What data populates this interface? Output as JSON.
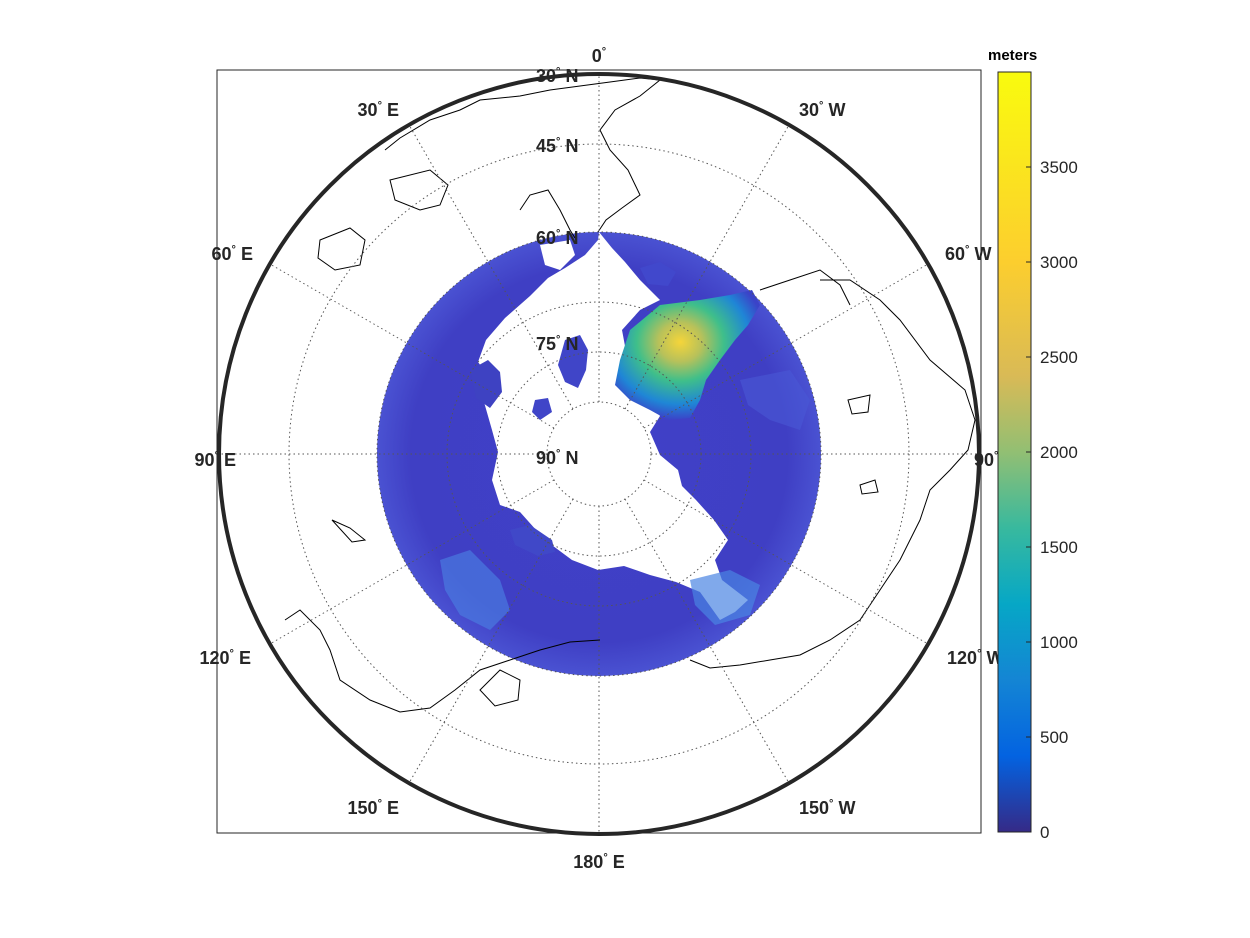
{
  "map": {
    "projection": "north-polar stereographic",
    "latitude_labels": [
      "30",
      "45",
      "60",
      "75",
      "90"
    ],
    "lat_suffix": "N",
    "meridian_labels": [
      {
        "num": "0",
        "dir": ""
      },
      {
        "num": "30",
        "dir": "W"
      },
      {
        "num": "60",
        "dir": "W"
      },
      {
        "num": "90",
        "dir": "W"
      },
      {
        "num": "120",
        "dir": "W"
      },
      {
        "num": "150",
        "dir": "W"
      },
      {
        "num": "180",
        "dir": "E"
      },
      {
        "num": "150",
        "dir": "E"
      },
      {
        "num": "120",
        "dir": "E"
      },
      {
        "num": "90",
        "dir": "E"
      },
      {
        "num": "60",
        "dir": "E"
      },
      {
        "num": "30",
        "dir": "E"
      }
    ],
    "degree_symbol": "°",
    "grid": true,
    "data_fill": "elevation raster, 60–90 N",
    "colormap": "parula"
  },
  "colorbar": {
    "title": "meters",
    "ticks": [
      "0",
      "500",
      "1000",
      "1500",
      "2000",
      "2500",
      "3000",
      "3500"
    ],
    "range": [
      0,
      4000
    ]
  },
  "colors": {
    "low": "#3a2fa0",
    "mid": "#1fb3c2",
    "peak": "#f9e61a",
    "frame": "#262626"
  }
}
